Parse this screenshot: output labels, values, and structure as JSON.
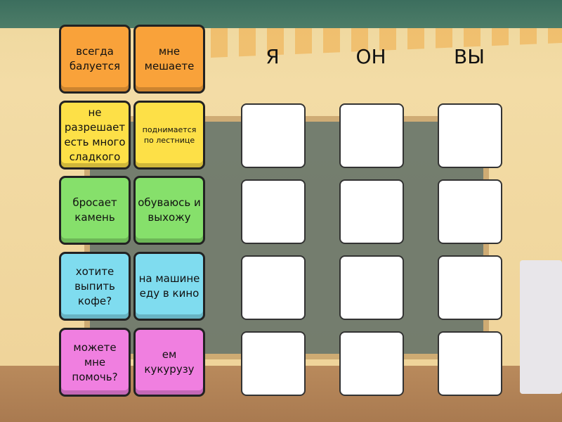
{
  "columns": [
    "Я",
    "ОН",
    "ВЫ"
  ],
  "tiles": [
    {
      "text": "всегда балуется",
      "color": "#f9a23a"
    },
    {
      "text": "мне мешаете",
      "color": "#f9a23a"
    },
    {
      "text": "не разрешает есть много сладкого",
      "color": "#fde047"
    },
    {
      "text": "поднимается по лестнице",
      "color": "#fde047"
    },
    {
      "text": "бросает камень",
      "color": "#86e06b"
    },
    {
      "text": "обуваюсь и выхожу",
      "color": "#86e06b"
    },
    {
      "text": "хотите выпить кофе?",
      "color": "#7fdcef"
    },
    {
      "text": "на машине еду в кино",
      "color": "#7fdcef"
    },
    {
      "text": "можете мне помочь?",
      "color": "#f07fe0"
    },
    {
      "text": "ем кукурузу",
      "color": "#f07fe0"
    }
  ],
  "drop_rows": 4
}
